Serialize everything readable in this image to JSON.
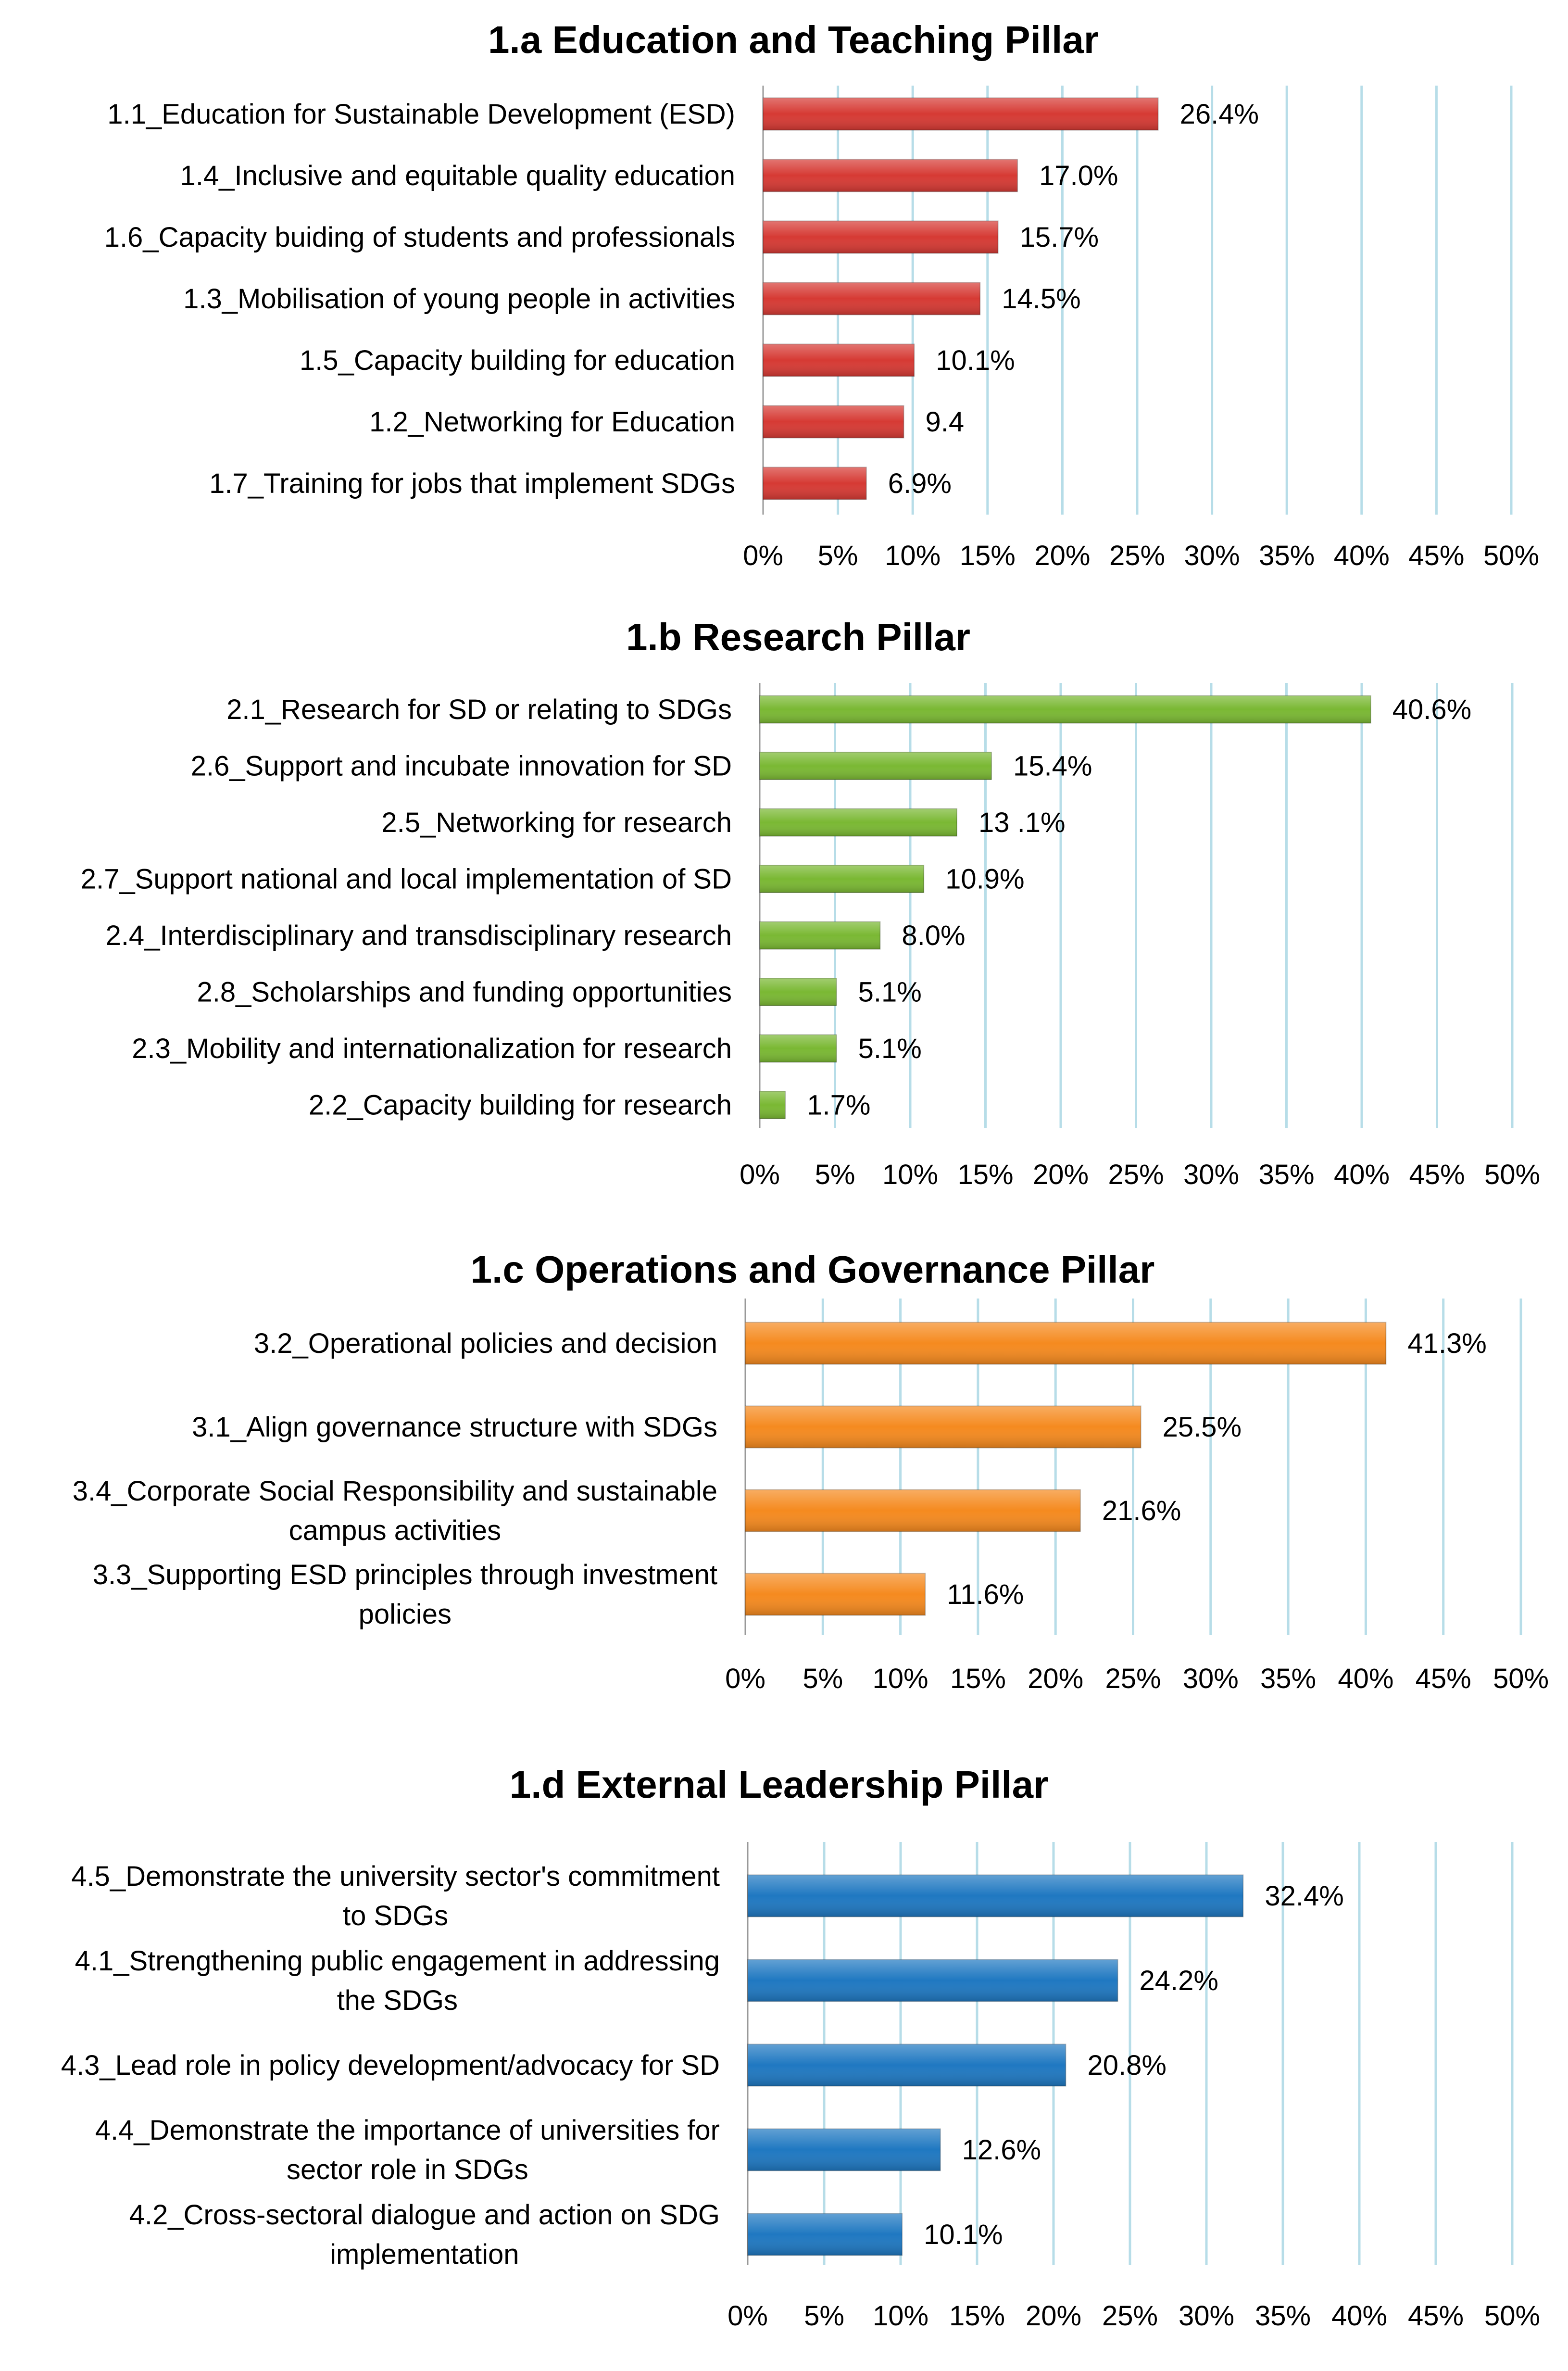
{
  "chart_data": [
    {
      "type": "bar",
      "orientation": "horizontal",
      "title": "1.a Education and Teaching Pillar",
      "color": "#d63a34",
      "categories": [
        [
          "1.1_Education for Sustainable Development (ESD)"
        ],
        [
          "1.4_Inclusive and equitable quality education"
        ],
        [
          "1.6_Capacity buiding of students and professionals"
        ],
        [
          "1.3_Mobilisation of young people in activities"
        ],
        [
          "1.5_Capacity building for education"
        ],
        [
          "1.2_Networking for Education"
        ],
        [
          "1.7_Training for jobs that implement SDGs"
        ]
      ],
      "values": [
        26.4,
        17.0,
        15.7,
        14.5,
        10.1,
        9.4,
        6.9
      ],
      "labels": [
        "26.4%",
        "17.0%",
        "15.7%",
        "14.5%",
        "10.1%",
        "9.4",
        "6.9%"
      ],
      "xlim": [
        0,
        50
      ],
      "ticks": [
        "0%",
        "5%",
        "10%",
        "15%",
        "20%",
        "25%",
        "30%",
        "35%",
        "40%",
        "45%",
        "50%"
      ],
      "grid": true
    },
    {
      "type": "bar",
      "orientation": "horizontal",
      "title": "1.b Research Pillar",
      "color": "#7ab833",
      "categories": [
        [
          "2.1_Research for SD or relating to SDGs"
        ],
        [
          "2.6_Support and incubate innovation for SD"
        ],
        [
          "2.5_Networking for research"
        ],
        [
          "2.7_Support national and local implementation of SD"
        ],
        [
          "2.4_Interdisciplinary and transdisciplinary research"
        ],
        [
          "2.8_Scholarships and funding opportunities"
        ],
        [
          "2.3_Mobility and internationalization for research"
        ],
        [
          "2.2_Capacity building for research"
        ]
      ],
      "values": [
        40.6,
        15.4,
        13.1,
        10.9,
        8.0,
        5.1,
        5.1,
        1.7
      ],
      "labels": [
        "40.6%",
        "15.4%",
        "13 .1%",
        "10.9%",
        "8.0%",
        "5.1%",
        "5.1%",
        "1.7%"
      ],
      "xlim": [
        0,
        50
      ],
      "ticks": [
        "0%",
        "5%",
        "10%",
        "15%",
        "20%",
        "25%",
        "30%",
        "35%",
        "40%",
        "45%",
        "50%"
      ],
      "grid": true
    },
    {
      "type": "bar",
      "orientation": "horizontal",
      "title": "1.c Operations and Governance Pillar",
      "color": "#f58a1f",
      "categories": [
        [
          "3.2_Operational policies and decision"
        ],
        [
          "3.1_Align governance structure with SDGs"
        ],
        [
          "3.4_Corporate Social Responsibility and sustainable",
          "campus activities"
        ],
        [
          "3.3_Supporting ESD principles through investment",
          "policies"
        ]
      ],
      "values": [
        41.3,
        25.5,
        21.6,
        11.6
      ],
      "labels": [
        "41.3%",
        "25.5%",
        "21.6%",
        "11.6%"
      ],
      "xlim": [
        0,
        50
      ],
      "ticks": [
        "0%",
        "5%",
        "10%",
        "15%",
        "20%",
        "25%",
        "30%",
        "35%",
        "40%",
        "45%",
        "50%"
      ],
      "grid": true
    },
    {
      "type": "bar",
      "orientation": "horizontal",
      "title": "1.d External Leadership Pillar",
      "color": "#1f78c1",
      "categories": [
        [
          "4.5_Demonstrate the university sector's commitment",
          "to SDGs"
        ],
        [
          "4.1_Strengthening public engagement in addressing",
          "the SDGs"
        ],
        [
          "4.3_Lead role in policy development/advocacy for SD"
        ],
        [
          "4.4_Demonstrate the importance of universities for",
          "sector role in SDGs"
        ],
        [
          "4.2_Cross-sectoral dialogue and action on SDG",
          "implementation"
        ]
      ],
      "values": [
        32.4,
        24.2,
        20.8,
        12.6,
        10.1
      ],
      "labels": [
        "32.4%",
        "24.2%",
        "20.8%",
        "12.6%",
        "10.1%"
      ],
      "xlim": [
        0,
        50
      ],
      "ticks": [
        "0%",
        "5%",
        "10%",
        "15%",
        "20%",
        "25%",
        "30%",
        "35%",
        "40%",
        "45%",
        "50%"
      ],
      "grid": true
    }
  ]
}
